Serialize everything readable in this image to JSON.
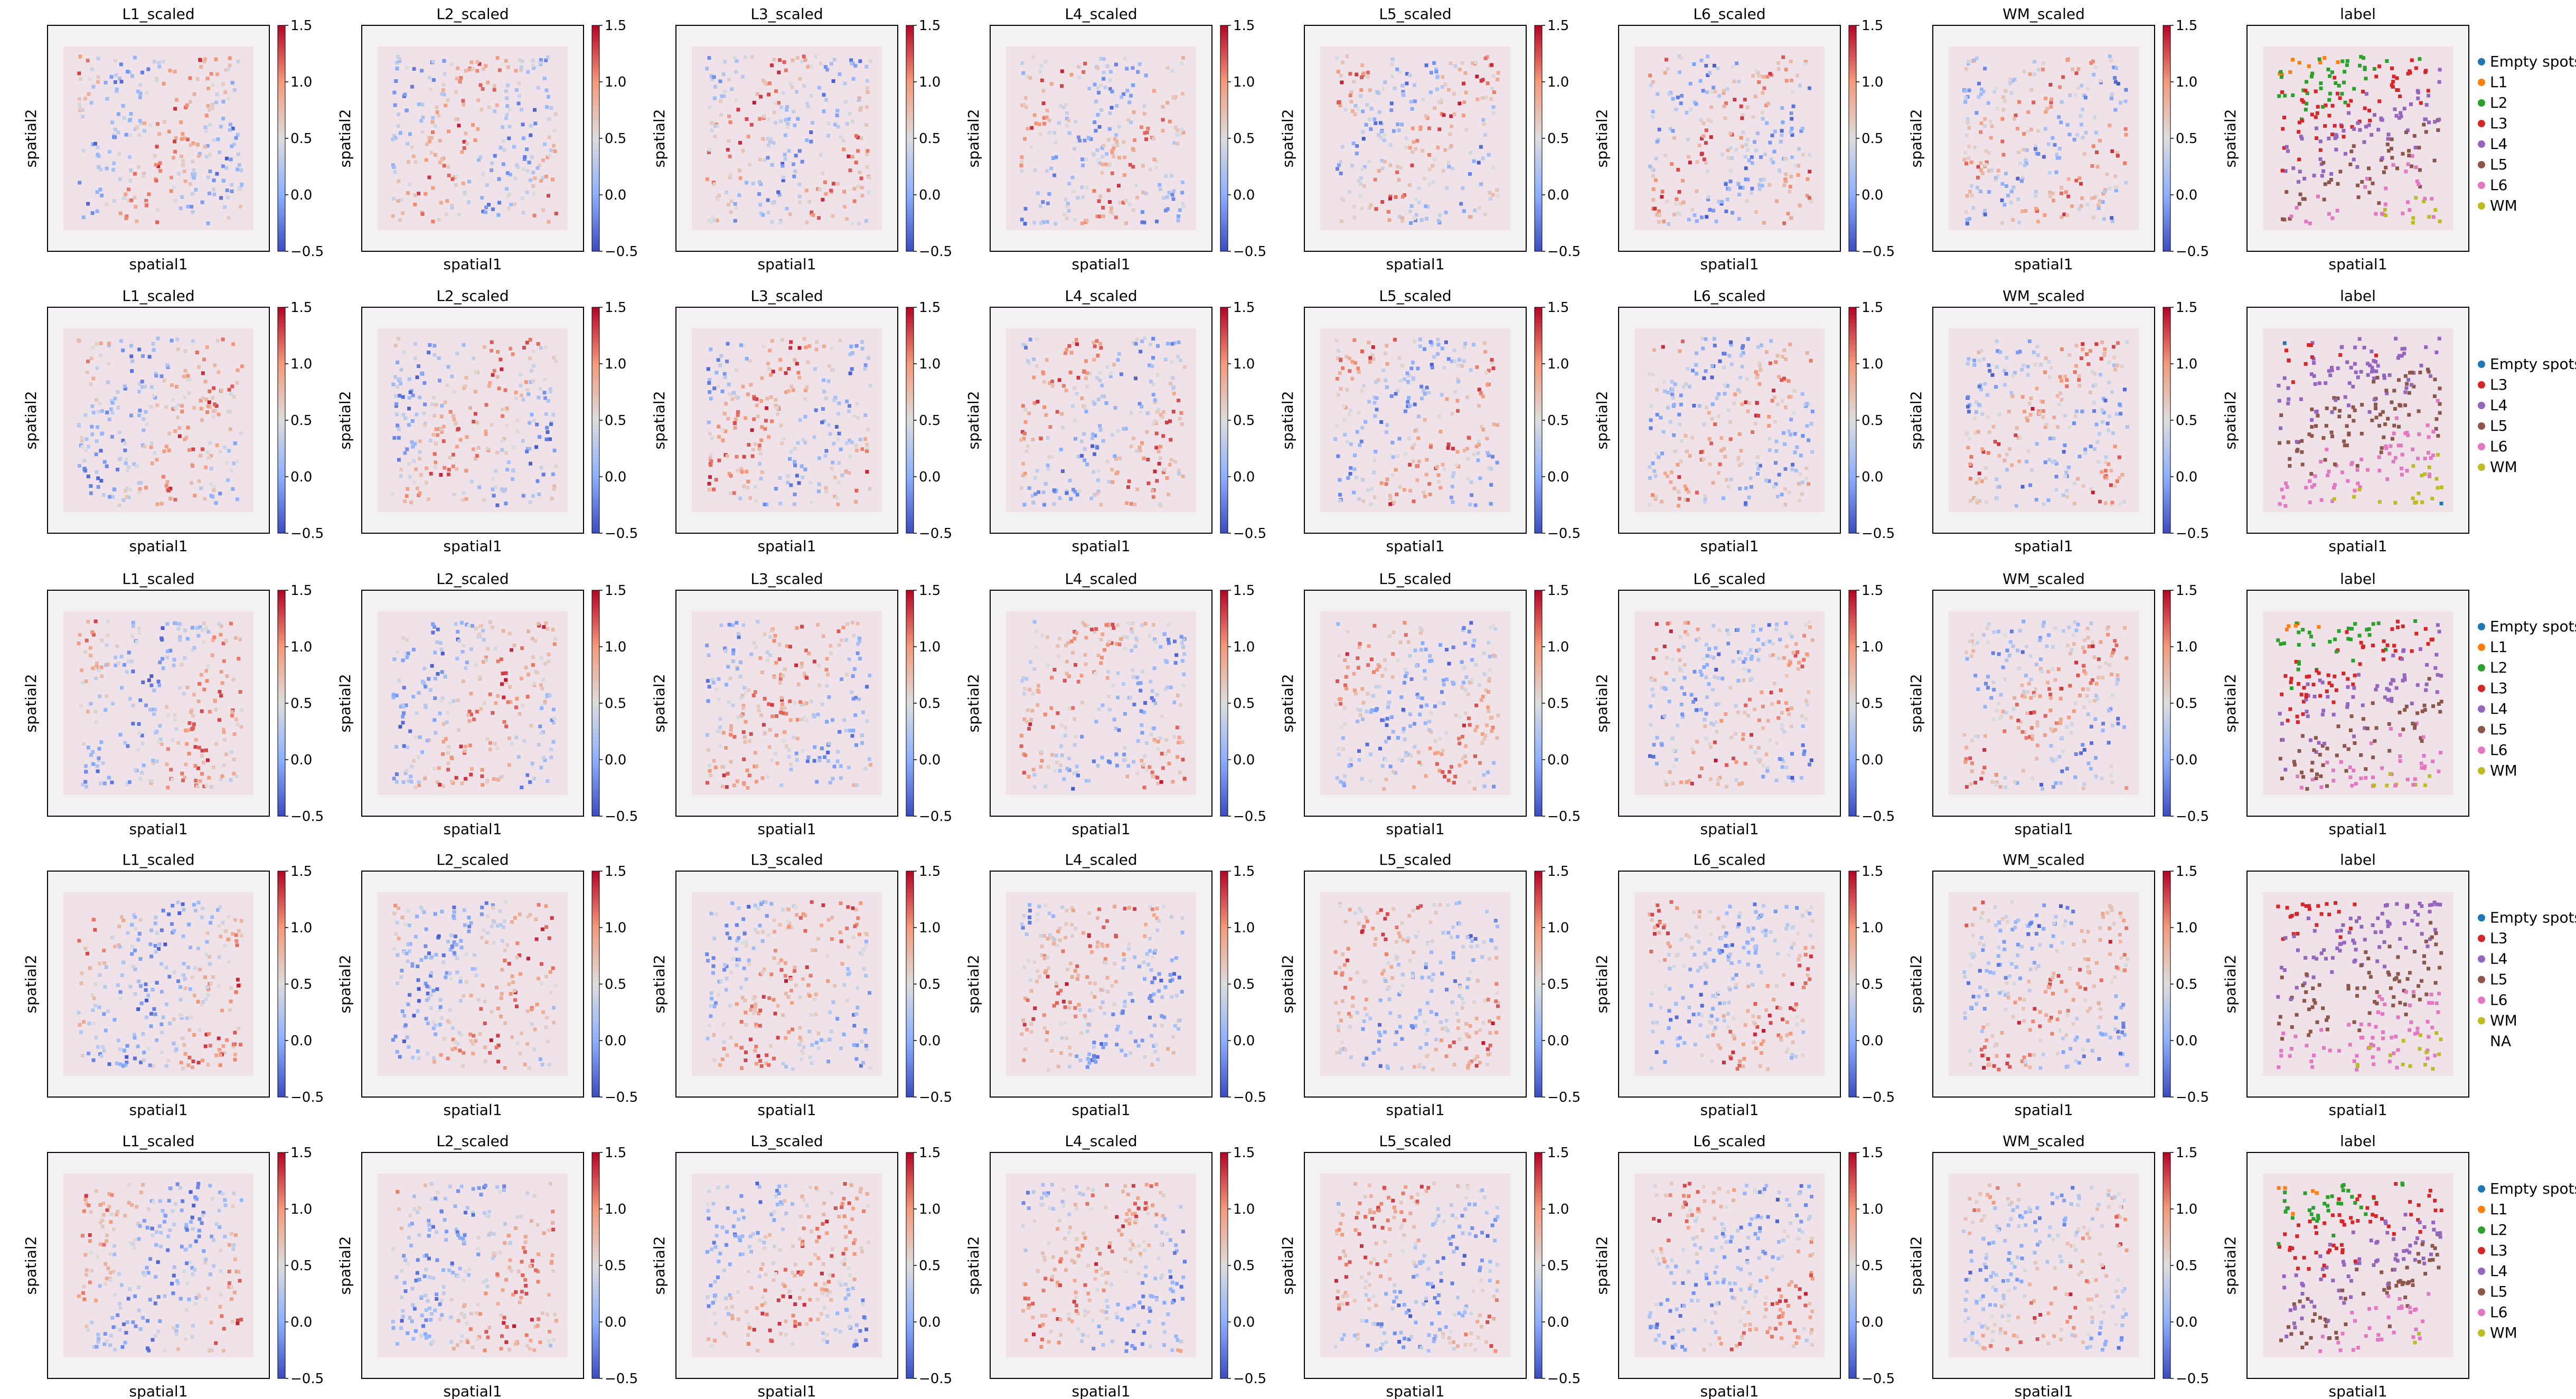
{
  "figure": {
    "type": "spatial scatter panels (scanpy-style)",
    "rows": 5,
    "cols": 8,
    "xlabel": "spatial1",
    "ylabel": "spatial2",
    "panel_titles": [
      "L1_scaled",
      "L2_scaled",
      "L3_scaled",
      "L4_scaled",
      "L5_scaled",
      "L6_scaled",
      "WM_scaled",
      "label"
    ],
    "colorbar": {
      "colormap": "coolwarm",
      "range": [
        -0.5,
        1.5
      ],
      "ticks": [
        "1.5",
        "1.0",
        "0.5",
        "0.0",
        "−0.5"
      ],
      "tick_values": [
        1.5,
        1.0,
        0.5,
        0.0,
        -0.5
      ]
    }
  },
  "label_colors": {
    "Empty spots": "#1f77b4",
    "L1": "#ff7f0e",
    "L2": "#2ca02c",
    "L3": "#d62728",
    "L4": "#9467bd",
    "L5": "#8c564b",
    "L6": "#e377c2",
    "WM": "#bcbd22",
    "NA": "#ffffff"
  },
  "chart_data": [
    {
      "type": "scatter",
      "row": 1,
      "panel_title": "label",
      "legend_placement": "right",
      "legend": [
        "Empty spots",
        "L1",
        "L2",
        "L3",
        "L4",
        "L5",
        "L6",
        "WM"
      ]
    },
    {
      "type": "scatter",
      "row": 2,
      "panel_title": "label",
      "legend_placement": "right",
      "legend": [
        "Empty spots",
        "L3",
        "L4",
        "L5",
        "L6",
        "WM"
      ]
    },
    {
      "type": "scatter",
      "row": 3,
      "panel_title": "label",
      "legend_placement": "right",
      "legend": [
        "Empty spots",
        "L1",
        "L2",
        "L3",
        "L4",
        "L5",
        "L6",
        "WM"
      ]
    },
    {
      "type": "scatter",
      "row": 4,
      "panel_title": "label",
      "legend_placement": "right",
      "legend": [
        "Empty spots",
        "L3",
        "L4",
        "L5",
        "L6",
        "WM",
        "NA"
      ]
    },
    {
      "type": "scatter",
      "row": 5,
      "panel_title": "label",
      "legend_placement": "right",
      "legend": [
        "Empty spots",
        "L1",
        "L2",
        "L3",
        "L4",
        "L5",
        "L6",
        "WM"
      ]
    }
  ]
}
